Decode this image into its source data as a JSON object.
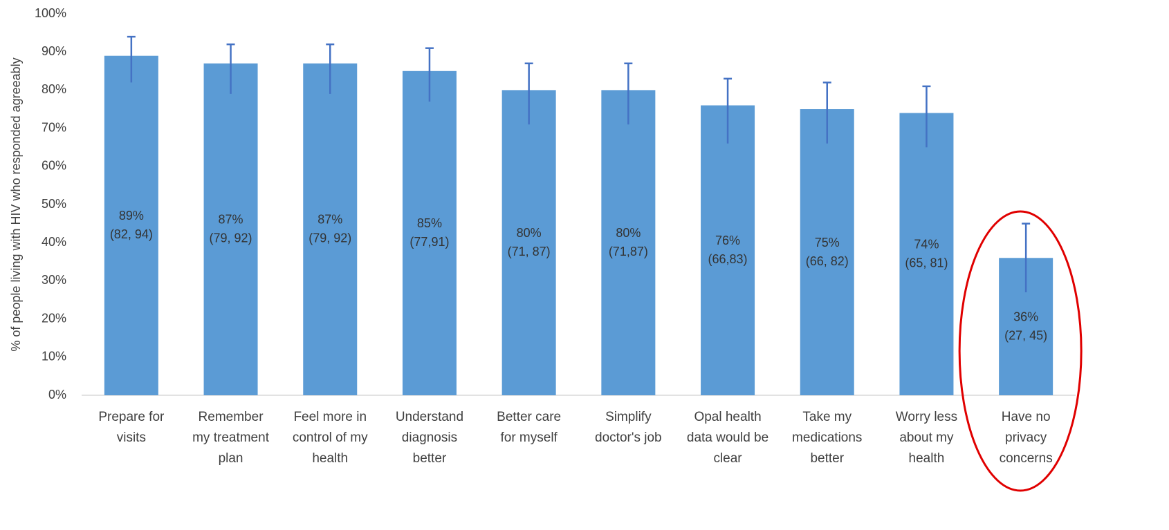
{
  "chart_data": {
    "type": "bar",
    "y_label": "% of people living with HIV who responded agreeably",
    "categories": [
      [
        "Prepare for",
        "visits"
      ],
      [
        "Remember",
        "my treatment",
        "plan"
      ],
      [
        "Feel more in",
        "control of my",
        "health"
      ],
      [
        "Understand",
        "diagnosis",
        "better"
      ],
      [
        "Better care",
        "for myself"
      ],
      [
        "Simplify",
        "doctor's job"
      ],
      [
        "Opal health",
        "data would be",
        "clear"
      ],
      [
        "Take my",
        "medications",
        "better"
      ],
      [
        "Worry less",
        "about my",
        "health"
      ],
      [
        "Have no",
        "privacy",
        "concerns"
      ]
    ],
    "values": [
      89,
      87,
      87,
      85,
      80,
      80,
      76,
      75,
      74,
      36
    ],
    "value_labels": [
      "89%",
      "87%",
      "87%",
      "85%",
      "80%",
      "80%",
      "76%",
      "75%",
      "74%",
      "36%"
    ],
    "ci": [
      [
        82,
        94
      ],
      [
        79,
        92
      ],
      [
        79,
        92
      ],
      [
        77,
        91
      ],
      [
        71,
        87
      ],
      [
        71,
        87
      ],
      [
        66,
        83
      ],
      [
        66,
        82
      ],
      [
        65,
        81
      ],
      [
        27,
        45
      ]
    ],
    "ci_labels": [
      "(82, 94)",
      "(79, 92)",
      "(79, 92)",
      "(77,91)",
      "(71, 87)",
      "(71,87)",
      "(66,83)",
      "(66, 82)",
      "(65, 81)",
      "(27, 45)"
    ],
    "color": "#5b9bd5",
    "error_color": "#4472c4",
    "ylim": [
      0,
      100
    ],
    "yticks": [
      {
        "value": 0,
        "label": "0%"
      },
      {
        "value": 10,
        "label": "10%"
      },
      {
        "value": 20,
        "label": "20%"
      },
      {
        "value": 30,
        "label": "30%"
      },
      {
        "value": 40,
        "label": "40%"
      },
      {
        "value": 50,
        "label": "50%"
      },
      {
        "value": 60,
        "label": "60%"
      },
      {
        "value": 70,
        "label": "70%"
      },
      {
        "value": 80,
        "label": "80%"
      },
      {
        "value": 90,
        "label": "90%"
      },
      {
        "value": 100,
        "label": "100%"
      }
    ],
    "grid": false
  }
}
